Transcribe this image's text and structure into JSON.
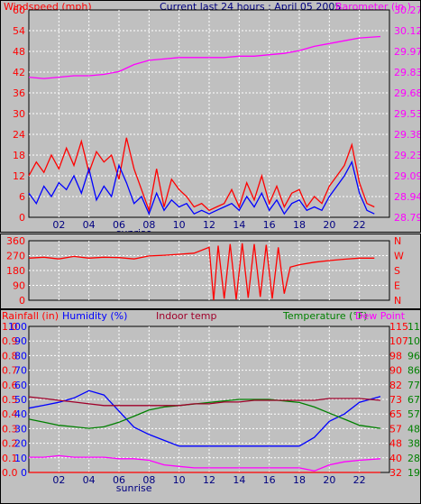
{
  "charts": {
    "wind": {
      "left_title": "Windspeed (mph)",
      "center_title": "Current last 24 hours : April 05 2005",
      "right_title": "Barometer (in.)"
    },
    "dir": {},
    "temp": {
      "left_title_1": "Rainfall (in)",
      "left_title_2": "Humidity (%)",
      "center_title": "Indoor temp",
      "right_title_1": "Temperature (°F)",
      "right_title_2": "Dew Point"
    }
  },
  "chart_data": [
    {
      "type": "line",
      "x_ticks": [
        "02",
        "04",
        "06",
        "08",
        "10",
        "12",
        "14",
        "16",
        "18",
        "20",
        "22"
      ],
      "x_annotation": "sunrise",
      "left_axis": {
        "ticks": [
          "0",
          "6",
          "12",
          "18",
          "24",
          "30",
          "36",
          "42",
          "48",
          "54",
          "60"
        ],
        "range": [
          0,
          60
        ],
        "color": "#ff0000"
      },
      "right_axis": {
        "ticks": [
          "28.79",
          "28.94",
          "29.09",
          "29.23",
          "29.38",
          "29.53",
          "29.68",
          "29.83",
          "29.97",
          "30.12",
          "30.27"
        ],
        "range": [
          28.79,
          30.27
        ],
        "color": "#ff00ff"
      },
      "series": [
        {
          "role": "windspeed",
          "color": "#ff0000",
          "axis": "left",
          "x": [
            0,
            0.5,
            1,
            1.5,
            2,
            2.5,
            3,
            3.5,
            4,
            4.5,
            5,
            5.5,
            6,
            6.5,
            7,
            7.5,
            8,
            8.5,
            9,
            9.5,
            10,
            10.5,
            11,
            11.5,
            12,
            12.5,
            13,
            13.5,
            14,
            14.5,
            15,
            15.5,
            16,
            16.5,
            17,
            17.5,
            18,
            18.5,
            19,
            19.5,
            20,
            20.5,
            21,
            21.5,
            22,
            22.5,
            23
          ],
          "y": [
            12,
            16,
            13,
            18,
            14,
            20,
            15,
            22,
            13,
            19,
            16,
            18,
            11,
            23,
            14,
            8,
            2,
            14,
            3,
            11,
            8,
            6,
            3,
            4,
            2,
            3,
            4,
            8,
            3,
            10,
            5,
            12,
            4,
            9,
            3,
            7,
            8,
            3,
            6,
            4,
            9,
            12,
            15,
            21,
            10,
            4,
            3
          ]
        },
        {
          "role": "gust",
          "color": "#0000ff",
          "axis": "left",
          "x": [
            0,
            0.5,
            1,
            1.5,
            2,
            2.5,
            3,
            3.5,
            4,
            4.5,
            5,
            5.5,
            6,
            6.5,
            7,
            7.5,
            8,
            8.5,
            9,
            9.5,
            10,
            10.5,
            11,
            11.5,
            12,
            12.5,
            13,
            13.5,
            14,
            14.5,
            15,
            15.5,
            16,
            16.5,
            17,
            17.5,
            18,
            18.5,
            19,
            19.5,
            20,
            20.5,
            21,
            21.5,
            22,
            22.5,
            23
          ],
          "y": [
            7,
            4,
            9,
            6,
            10,
            8,
            12,
            7,
            14,
            5,
            9,
            6,
            15,
            10,
            4,
            6,
            1,
            7,
            2,
            5,
            3,
            4,
            1,
            2,
            1,
            2,
            3,
            4,
            2,
            6,
            3,
            7,
            2,
            5,
            1,
            4,
            5,
            2,
            3,
            2,
            6,
            9,
            12,
            16,
            7,
            2,
            1
          ]
        },
        {
          "role": "barometer",
          "color": "#ff00ff",
          "axis": "right",
          "x": [
            0,
            1,
            2,
            3,
            4,
            5,
            6,
            7,
            8,
            9,
            10,
            11,
            12,
            13,
            14,
            15,
            16,
            17,
            18,
            19,
            20,
            21,
            22,
            23.4
          ],
          "y": [
            29.79,
            29.78,
            29.79,
            29.8,
            29.8,
            29.81,
            29.83,
            29.88,
            29.91,
            29.92,
            29.93,
            29.93,
            29.93,
            29.93,
            29.94,
            29.94,
            29.95,
            29.96,
            29.98,
            30.01,
            30.03,
            30.05,
            30.07,
            30.08
          ]
        }
      ]
    },
    {
      "type": "line",
      "x_ticks": [
        "02",
        "04",
        "06",
        "08",
        "10",
        "12",
        "14",
        "16",
        "18",
        "20",
        "22"
      ],
      "left_axis": {
        "ticks": [
          "0",
          "90",
          "180",
          "270",
          "360"
        ],
        "range": [
          0,
          360
        ],
        "color": "#ff0000"
      },
      "right_axis": {
        "ticks": [
          "N",
          "E",
          "S",
          "W",
          "N"
        ],
        "color": "#ff0000"
      },
      "series": [
        {
          "role": "wind_direction",
          "color": "#ff0000",
          "x": [
            0,
            1,
            2,
            3,
            4,
            5,
            6,
            7,
            8,
            9,
            10,
            11,
            12,
            12.3,
            12.6,
            13,
            13.4,
            13.8,
            14.2,
            14.6,
            15,
            15.4,
            15.8,
            16.2,
            16.6,
            17,
            17.4,
            18,
            19,
            20,
            21,
            22,
            23
          ],
          "y": [
            255,
            260,
            250,
            265,
            255,
            260,
            258,
            250,
            268,
            272,
            278,
            285,
            320,
            0,
            330,
            10,
            340,
            5,
            345,
            15,
            340,
            20,
            335,
            10,
            320,
            40,
            200,
            215,
            230,
            240,
            248,
            255,
            255
          ]
        }
      ]
    },
    {
      "type": "line",
      "x_ticks": [
        "02",
        "04",
        "06",
        "08",
        "10",
        "12",
        "14",
        "16",
        "18",
        "20",
        "22"
      ],
      "x_annotation": "sunrise",
      "left_axis_1": {
        "ticks": [
          "0.0",
          "0.1",
          "0.2",
          "0.3",
          "0.4",
          "0.5",
          "0.6",
          "0.7",
          "0.8",
          "0.9",
          "1.0"
        ],
        "range": [
          0,
          1
        ],
        "color": "#ff0000"
      },
      "left_axis_2": {
        "ticks": [
          "0",
          "10",
          "20",
          "30",
          "40",
          "50",
          "60",
          "70",
          "80",
          "90",
          "100"
        ],
        "range": [
          0,
          100
        ],
        "color": "#0000ff"
      },
      "right_axis_1": {
        "ticks": [
          "32",
          "40",
          "48",
          "57",
          "65",
          "73",
          "82",
          "90",
          "98",
          "107",
          "115"
        ],
        "range": [
          32,
          115
        ],
        "color": "#ff0000"
      },
      "right_axis_2": {
        "ticks": [
          "19",
          "28",
          "38",
          "48",
          "57",
          "67",
          "77",
          "86",
          "96",
          "105",
          "115"
        ],
        "range": [
          19,
          115
        ],
        "color": "#008000"
      },
      "series": [
        {
          "role": "humidity",
          "color": "#0000ff",
          "axis": "left_2",
          "x": [
            0,
            1,
            2,
            3,
            4,
            5,
            6,
            7,
            8,
            9,
            10,
            11,
            12,
            13,
            14,
            15,
            16,
            17,
            18,
            19,
            20,
            21,
            22,
            23.4
          ],
          "y": [
            44,
            46,
            48,
            51,
            56,
            53,
            42,
            31,
            26,
            22,
            18,
            18,
            18,
            18,
            18,
            18,
            18,
            18,
            18,
            24,
            35,
            40,
            48,
            52
          ]
        },
        {
          "role": "temperature",
          "color": "#008000",
          "axis": "right_2",
          "x": [
            0,
            1,
            2,
            3,
            4,
            5,
            6,
            7,
            8,
            9,
            10,
            11,
            12,
            13,
            14,
            15,
            16,
            17,
            18,
            19,
            20,
            21,
            22,
            23.4
          ],
          "y": [
            54,
            52,
            50,
            49,
            48,
            49,
            52,
            56,
            60,
            62,
            63,
            64,
            65,
            66,
            67,
            67,
            67,
            66,
            65,
            62,
            58,
            54,
            50,
            48
          ]
        },
        {
          "role": "dew_point",
          "color": "#ff00ff",
          "axis": "right_2",
          "x": [
            0,
            1,
            2,
            3,
            4,
            5,
            6,
            7,
            8,
            9,
            10,
            11,
            12,
            13,
            14,
            15,
            16,
            17,
            18,
            19,
            20,
            21,
            22,
            23.4
          ],
          "y": [
            29,
            29,
            30,
            29,
            29,
            29,
            28,
            28,
            27,
            24,
            23,
            22,
            22,
            22,
            22,
            22,
            22,
            22,
            22,
            20,
            24,
            26,
            27,
            28
          ]
        },
        {
          "role": "indoor_temp",
          "color": "#a0002a",
          "axis": "right_1",
          "x": [
            0,
            1,
            2,
            3,
            4,
            5,
            6,
            7,
            8,
            9,
            10,
            11,
            12,
            13,
            14,
            15,
            16,
            17,
            18,
            19,
            20,
            21,
            22,
            23.4
          ],
          "y": [
            75,
            74,
            73,
            72,
            71,
            70,
            70,
            70,
            70,
            70,
            70,
            71,
            71,
            72,
            72,
            73,
            73,
            73,
            73,
            73,
            74,
            74,
            74,
            73
          ]
        },
        {
          "role": "rainfall",
          "color": "#ff0000",
          "axis": "left_1",
          "x": [
            0,
            23.4
          ],
          "y": [
            0,
            0
          ]
        }
      ]
    }
  ]
}
